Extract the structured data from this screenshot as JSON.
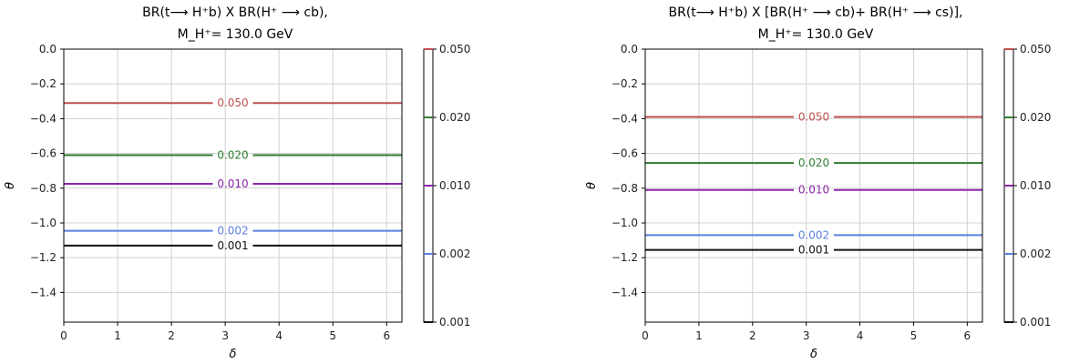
{
  "chart_data": [
    {
      "type": "contour",
      "title_line1": "BR(t⟶ H⁺b) X BR(H⁺ ⟶ cb),",
      "title_line2": "M_H⁺= 130.0 GeV",
      "xlabel": "δ",
      "ylabel": "θ",
      "xlim": [
        0,
        6.283
      ],
      "ylim": [
        -1.5708,
        0
      ],
      "xticks": [
        0,
        1,
        2,
        3,
        4,
        5,
        6
      ],
      "yticks": [
        0.0,
        -0.2,
        -0.4,
        -0.6,
        -0.8,
        -1.0,
        -1.2,
        -1.4
      ],
      "ytick_labels": [
        "0.0",
        "−0.2",
        "−0.4",
        "−0.6",
        "−0.8",
        "−1.0",
        "−1.2",
        "−1.4"
      ],
      "grid": true,
      "levels": [
        {
          "label": "0.050",
          "y": -0.31,
          "color": "#c0504d"
        },
        {
          "label": "0.020",
          "y": -0.61,
          "color": "#2e7d32"
        },
        {
          "label": "0.010",
          "y": -0.775,
          "color": "#8e24aa"
        },
        {
          "label": "0.002",
          "y": -1.045,
          "color": "#5b7fe0"
        },
        {
          "label": "0.001",
          "y": -1.13,
          "color": "#111111"
        }
      ],
      "colorbar": {
        "ticks": [
          "0.050",
          "0.020",
          "0.010",
          "0.002",
          "0.001"
        ],
        "tick_colors": [
          "#c0504d",
          "#2e7d32",
          "#8e24aa",
          "#5b7fe0",
          "#111111"
        ]
      }
    },
    {
      "type": "contour",
      "title_line1": "BR(t⟶ H⁺b) X [BR(H⁺ ⟶ cb)+ BR(H⁺ ⟶ cs)],",
      "title_line2": "M_H⁺= 130.0 GeV",
      "xlabel": "δ",
      "ylabel": "θ",
      "xlim": [
        0,
        6.283
      ],
      "ylim": [
        -1.5708,
        0
      ],
      "xticks": [
        0,
        1,
        2,
        3,
        4,
        5,
        6
      ],
      "yticks": [
        0.0,
        -0.2,
        -0.4,
        -0.6,
        -0.8,
        -1.0,
        -1.2,
        -1.4
      ],
      "ytick_labels": [
        "0.0",
        "−0.2",
        "−0.4",
        "−0.6",
        "−0.8",
        "−1.0",
        "−1.2",
        "−1.4"
      ],
      "grid": true,
      "levels": [
        {
          "label": "0.050",
          "y": -0.39,
          "color": "#c0504d"
        },
        {
          "label": "0.020",
          "y": -0.655,
          "color": "#2e7d32"
        },
        {
          "label": "0.010",
          "y": -0.81,
          "color": "#8e24aa"
        },
        {
          "label": "0.002",
          "y": -1.07,
          "color": "#5b7fe0"
        },
        {
          "label": "0.001",
          "y": -1.155,
          "color": "#111111"
        }
      ],
      "colorbar": {
        "ticks": [
          "0.050",
          "0.020",
          "0.010",
          "0.002",
          "0.001"
        ],
        "tick_colors": [
          "#c0504d",
          "#2e7d32",
          "#8e24aa",
          "#5b7fe0",
          "#111111"
        ]
      }
    }
  ]
}
